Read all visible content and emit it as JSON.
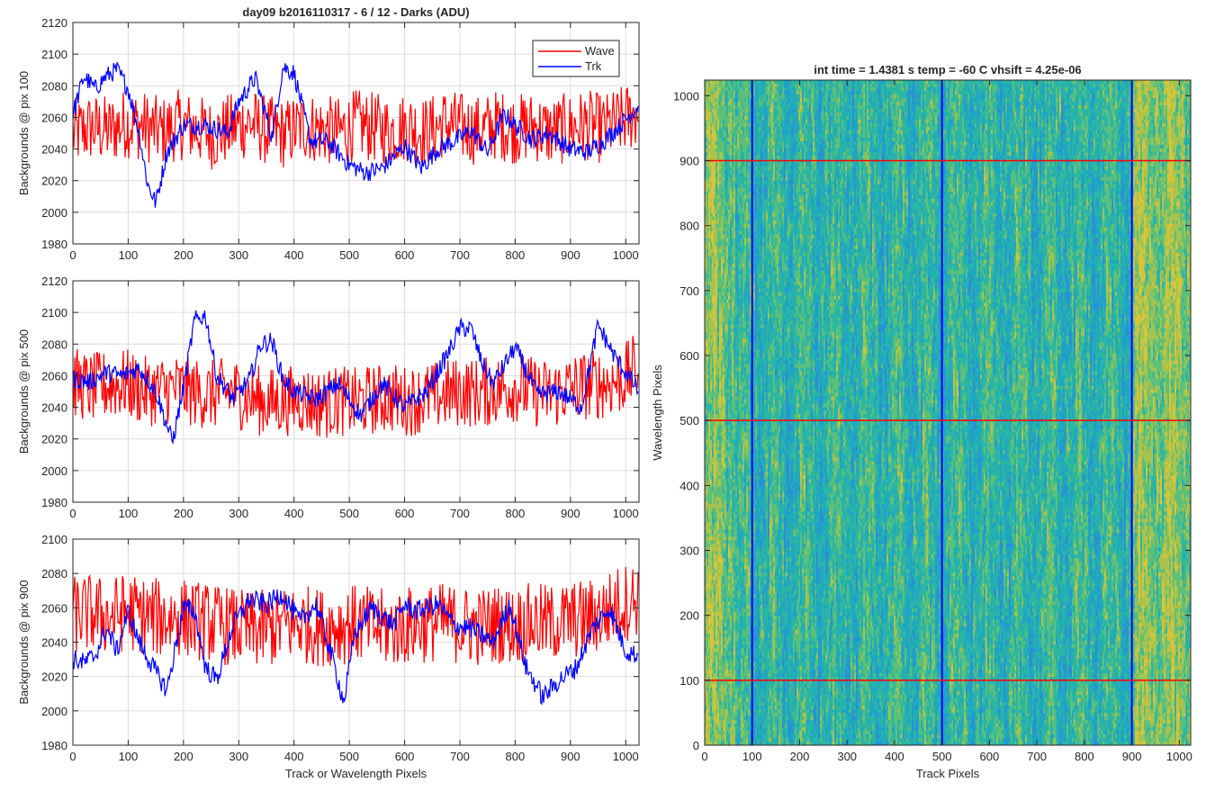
{
  "chart_data": [
    {
      "type": "line",
      "title": "day09 b2016110317 - 6 / 12 - Darks (ADU)",
      "xlabel": "",
      "ylabel": "Backgrounds @ pix 100",
      "xlim": [
        0,
        1024
      ],
      "ylim": [
        1980,
        2120
      ],
      "xticks": [
        0,
        100,
        200,
        300,
        400,
        500,
        600,
        700,
        800,
        900,
        1000
      ],
      "yticks": [
        1980,
        2000,
        2020,
        2040,
        2060,
        2080,
        2100,
        2120
      ],
      "xticklabels": [
        "0",
        "100",
        "200",
        "300",
        "400",
        "500",
        "600",
        "700",
        "800",
        "900",
        "1000"
      ],
      "yticklabels": [
        "1980",
        "2000",
        "2020",
        "2040",
        "2060",
        "2080",
        "2100",
        "2120"
      ],
      "grid": true,
      "legend": "top-right",
      "series": [
        {
          "name": "Wave",
          "color": "#ff0000",
          "x": [
            0,
            32,
            64,
            96,
            128,
            160,
            192,
            224,
            256,
            288,
            320,
            352,
            384,
            416,
            448,
            480,
            512,
            544,
            576,
            608,
            640,
            672,
            704,
            736,
            768,
            800,
            832,
            864,
            896,
            928,
            960,
            992,
            1024
          ],
          "values": [
            2048,
            2052,
            2050,
            2055,
            2053,
            2049,
            2054,
            2051,
            2047,
            2052,
            2055,
            2050,
            2048,
            2053,
            2051,
            2049,
            2054,
            2052,
            2050,
            2053,
            2049,
            2055,
            2052,
            2050,
            2054,
            2051,
            2053,
            2049,
            2052,
            2054,
            2051,
            2056,
            2062
          ],
          "spread": [
            -28,
            32
          ]
        },
        {
          "name": "Trk",
          "color": "#0000ff",
          "x": [
            0,
            20,
            40,
            60,
            80,
            100,
            120,
            135,
            150,
            170,
            200,
            240,
            280,
            300,
            330,
            360,
            380,
            400,
            430,
            460,
            500,
            530,
            560,
            600,
            630,
            660,
            700,
            720,
            750,
            780,
            800,
            830,
            860,
            900,
            930,
            960,
            990,
            1024
          ],
          "values": [
            2062,
            2086,
            2078,
            2086,
            2090,
            2078,
            2050,
            2018,
            2006,
            2038,
            2055,
            2055,
            2050,
            2070,
            2085,
            2048,
            2092,
            2088,
            2045,
            2045,
            2030,
            2025,
            2028,
            2042,
            2028,
            2040,
            2047,
            2052,
            2038,
            2062,
            2055,
            2046,
            2050,
            2040,
            2038,
            2045,
            2055,
            2068
          ]
        }
      ]
    },
    {
      "type": "line",
      "title": "",
      "xlabel": "",
      "ylabel": "Backgrounds @ pix 500",
      "xlim": [
        0,
        1024
      ],
      "ylim": [
        1980,
        2120
      ],
      "xticks": [
        0,
        100,
        200,
        300,
        400,
        500,
        600,
        700,
        800,
        900,
        1000
      ],
      "yticks": [
        1980,
        2000,
        2020,
        2040,
        2060,
        2080,
        2100,
        2120
      ],
      "xticklabels": [
        "0",
        "100",
        "200",
        "300",
        "400",
        "500",
        "600",
        "700",
        "800",
        "900",
        "1000"
      ],
      "yticklabels": [
        "1980",
        "2000",
        "2020",
        "2040",
        "2060",
        "2080",
        "2100",
        "2120"
      ],
      "grid": true,
      "series": [
        {
          "name": "Wave",
          "color": "#ff0000",
          "x": [
            0,
            32,
            64,
            96,
            128,
            160,
            192,
            224,
            256,
            288,
            320,
            352,
            384,
            416,
            448,
            480,
            512,
            544,
            576,
            608,
            640,
            672,
            704,
            736,
            768,
            800,
            832,
            864,
            896,
            928,
            960,
            992,
            1024
          ],
          "values": [
            2056,
            2052,
            2054,
            2055,
            2050,
            2051,
            2052,
            2049,
            2048,
            2050,
            2046,
            2043,
            2044,
            2045,
            2042,
            2044,
            2043,
            2045,
            2046,
            2044,
            2046,
            2048,
            2050,
            2049,
            2051,
            2053,
            2050,
            2048,
            2052,
            2054,
            2055,
            2057,
            2066
          ],
          "spread": [
            -30,
            30
          ]
        },
        {
          "name": "Trk",
          "color": "#0000ff",
          "x": [
            0,
            30,
            60,
            90,
            120,
            150,
            180,
            200,
            220,
            240,
            260,
            290,
            320,
            340,
            360,
            380,
            400,
            440,
            480,
            520,
            560,
            600,
            640,
            680,
            700,
            720,
            740,
            760,
            800,
            840,
            880,
            920,
            950,
            980,
            1024
          ],
          "values": [
            2058,
            2056,
            2062,
            2060,
            2065,
            2050,
            2018,
            2052,
            2095,
            2098,
            2060,
            2045,
            2058,
            2080,
            2082,
            2058,
            2050,
            2045,
            2055,
            2035,
            2055,
            2040,
            2050,
            2075,
            2090,
            2090,
            2068,
            2055,
            2078,
            2048,
            2050,
            2040,
            2092,
            2072,
            2050
          ]
        }
      ]
    },
    {
      "type": "line",
      "title": "",
      "xlabel": "Track or Wavelength Pixels",
      "ylabel": "Backgrounds @ pix 900",
      "xlim": [
        0,
        1024
      ],
      "ylim": [
        1980,
        2100
      ],
      "xticks": [
        0,
        100,
        200,
        300,
        400,
        500,
        600,
        700,
        800,
        900,
        1000
      ],
      "yticks": [
        1980,
        2000,
        2020,
        2040,
        2060,
        2080,
        2100
      ],
      "xticklabels": [
        "0",
        "100",
        "200",
        "300",
        "400",
        "500",
        "600",
        "700",
        "800",
        "900",
        "1000"
      ],
      "yticklabels": [
        "1980",
        "2000",
        "2020",
        "2040",
        "2060",
        "2080",
        "2100"
      ],
      "grid": true,
      "series": [
        {
          "name": "Wave",
          "color": "#ff0000",
          "x": [
            0,
            32,
            64,
            96,
            128,
            160,
            192,
            224,
            256,
            288,
            320,
            352,
            384,
            416,
            448,
            480,
            512,
            544,
            576,
            608,
            640,
            672,
            704,
            736,
            768,
            800,
            832,
            864,
            896,
            928,
            960,
            992,
            1024
          ],
          "values": [
            2055,
            2056,
            2054,
            2057,
            2055,
            2053,
            2054,
            2052,
            2050,
            2048,
            2046,
            2047,
            2049,
            2050,
            2048,
            2049,
            2050,
            2048,
            2047,
            2049,
            2050,
            2051,
            2049,
            2048,
            2050,
            2049,
            2051,
            2050,
            2052,
            2053,
            2056,
            2062,
            2065
          ],
          "spread": [
            -30,
            32
          ]
        },
        {
          "name": "Trk",
          "color": "#0000ff",
          "x": [
            0,
            20,
            40,
            60,
            80,
            100,
            120,
            140,
            170,
            200,
            220,
            240,
            260,
            290,
            320,
            350,
            380,
            410,
            440,
            470,
            490,
            510,
            540,
            580,
            600,
            620,
            660,
            690,
            720,
            760,
            790,
            820,
            850,
            880,
            910,
            940,
            970,
            1000,
            1024
          ],
          "values": [
            2030,
            2028,
            2032,
            2048,
            2035,
            2058,
            2040,
            2028,
            2012,
            2060,
            2058,
            2025,
            2018,
            2050,
            2065,
            2062,
            2068,
            2052,
            2062,
            2030,
            2005,
            2045,
            2060,
            2050,
            2062,
            2058,
            2062,
            2050,
            2048,
            2040,
            2062,
            2025,
            2008,
            2018,
            2025,
            2048,
            2060,
            2035,
            2032
          ]
        }
      ]
    },
    {
      "type": "heatmap",
      "title": "int time = 1.4381 s   temp = -60 C   vhsift = 4.25e-06",
      "xlabel": "Track Pixels",
      "ylabel": "Wavelength Pixels",
      "xlim": [
        0,
        1024
      ],
      "ylim": [
        0,
        1024
      ],
      "xticks": [
        0,
        100,
        200,
        300,
        400,
        500,
        600,
        700,
        800,
        900,
        1000
      ],
      "yticks": [
        0,
        100,
        200,
        300,
        400,
        500,
        600,
        700,
        800,
        900,
        1000
      ],
      "xticklabels": [
        "0",
        "100",
        "200",
        "300",
        "400",
        "500",
        "600",
        "700",
        "800",
        "900",
        "1000"
      ],
      "yticklabels": [
        "0",
        "100",
        "200",
        "300",
        "400",
        "500",
        "600",
        "700",
        "800",
        "900",
        "1000"
      ],
      "colormap": [
        "#2a8fd6",
        "#1fa6c2",
        "#2bb5a4",
        "#5cc07a",
        "#a7c34e",
        "#d8c43a"
      ],
      "vertical_markers": {
        "x": [
          100,
          500,
          900
        ],
        "color": "#0000ff"
      },
      "horizontal_markers": {
        "y": [
          100,
          500,
          900
        ],
        "color": "#ff0000"
      }
    }
  ]
}
